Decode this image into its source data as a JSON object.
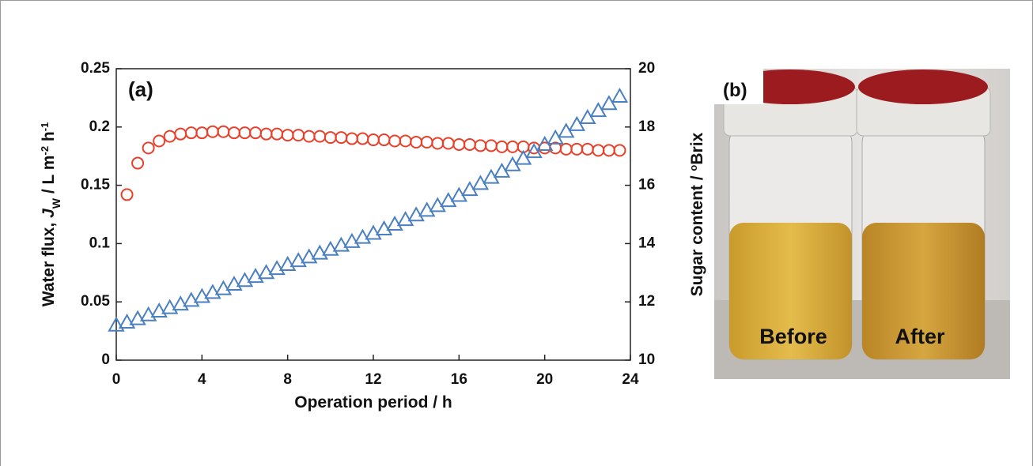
{
  "chart_data": {
    "type": "scatter",
    "xlabel": "Operation period / h",
    "ylabel": {
      "parts": [
        "Water flux, ",
        "J",
        "W",
        " / L m",
        "-2",
        " h",
        "-1"
      ]
    },
    "y2label": {
      "parts": [
        "Sugar content / ",
        "o",
        "Brix"
      ]
    },
    "annotation": "(a)",
    "xlim": [
      0,
      24
    ],
    "xticks": [
      0,
      4,
      8,
      12,
      16,
      20,
      24
    ],
    "ylim": [
      0,
      0.25
    ],
    "yticks": [
      0,
      0.05,
      0.1,
      0.15,
      0.2,
      0.25
    ],
    "y2lim": [
      10,
      20
    ],
    "y2ticks": [
      10,
      12,
      14,
      16,
      18,
      20
    ],
    "series": [
      {
        "color": "#e8402a",
        "marker": "circle",
        "x": [
          0.5,
          1,
          1.5,
          2,
          2.5,
          3,
          3.5,
          4,
          4.5,
          5,
          5.5,
          6,
          6.5,
          7,
          7.5,
          8,
          8.5,
          9,
          9.5,
          10,
          10.5,
          11,
          11.5,
          12,
          12.5,
          13,
          13.5,
          14,
          14.5,
          15,
          15.5,
          16,
          16.5,
          17,
          17.5,
          18,
          18.5,
          19,
          19.5,
          20,
          20.5,
          21,
          21.5,
          22,
          22.5,
          23,
          23.5
        ],
        "values": [
          0.142,
          0.169,
          0.182,
          0.188,
          0.192,
          0.194,
          0.195,
          0.195,
          0.196,
          0.196,
          0.195,
          0.195,
          0.195,
          0.194,
          0.194,
          0.193,
          0.193,
          0.192,
          0.192,
          0.191,
          0.191,
          0.19,
          0.19,
          0.189,
          0.189,
          0.188,
          0.188,
          0.187,
          0.187,
          0.186,
          0.186,
          0.185,
          0.185,
          0.184,
          0.184,
          0.183,
          0.183,
          0.183,
          0.182,
          0.182,
          0.182,
          0.181,
          0.181,
          0.181,
          0.18,
          0.18,
          0.18
        ]
      },
      {
        "color": "#4a7fc0",
        "marker": "triangle",
        "axis": "y2",
        "x": [
          0,
          0.5,
          1,
          1.5,
          2,
          2.5,
          3,
          3.5,
          4,
          4.5,
          5,
          5.5,
          6,
          6.5,
          7,
          7.5,
          8,
          8.5,
          9,
          9.5,
          10,
          10.5,
          11,
          11.5,
          12,
          12.5,
          13,
          13.5,
          14,
          14.5,
          15,
          15.5,
          16,
          16.5,
          17,
          17.5,
          18,
          18.5,
          19,
          19.5,
          20,
          20.5,
          21,
          21.5,
          22,
          22.5,
          23,
          23.5
        ],
        "values": [
          11.2,
          11.3,
          11.42,
          11.55,
          11.68,
          11.8,
          11.92,
          12.05,
          12.18,
          12.32,
          12.45,
          12.6,
          12.73,
          12.87,
          13.0,
          13.14,
          13.28,
          13.41,
          13.54,
          13.67,
          13.8,
          13.94,
          14.07,
          14.21,
          14.35,
          14.5,
          14.66,
          14.82,
          14.98,
          15.14,
          15.3,
          15.47,
          15.65,
          15.85,
          16.06,
          16.27,
          16.48,
          16.7,
          16.92,
          17.15,
          17.4,
          17.62,
          17.85,
          18.08,
          18.32,
          18.56,
          18.8,
          19.05
        ]
      }
    ]
  },
  "photo": {
    "label": "(b)",
    "left_vial": "Before",
    "right_vial": "After"
  }
}
